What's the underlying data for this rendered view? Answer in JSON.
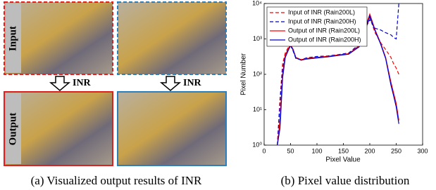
{
  "figure": {
    "row_labels": [
      "Input",
      "Output"
    ],
    "arrow_labels": [
      "INR",
      "INR"
    ],
    "caption": "(a) Visualized output results of INR"
  },
  "chart_data": {
    "type": "line",
    "caption": "(b) Pixel value distribution",
    "xlabel": "Pixel Value",
    "ylabel": "Pixel Number",
    "x": [
      25,
      30,
      35,
      40,
      45,
      50,
      55,
      60,
      70,
      80,
      100,
      120,
      140,
      160,
      180,
      190,
      200,
      210,
      220,
      230,
      240,
      245,
      250,
      255
    ],
    "series": [
      {
        "name": "Input of INR (Rain200L)",
        "color": "#ff0000",
        "linestyle": "dashed",
        "values": [
          1,
          20,
          200,
          400,
          550,
          700,
          500,
          300,
          250,
          280,
          300,
          320,
          350,
          380,
          600,
          1500,
          4000,
          1500,
          800,
          500,
          300,
          200,
          150,
          100
        ]
      },
      {
        "name": "Input of INR (Rain200H)",
        "color": "#0000cc",
        "linestyle": "dashed",
        "values": [
          1,
          15,
          150,
          350,
          500,
          650,
          450,
          280,
          260,
          290,
          320,
          330,
          360,
          400,
          700,
          1800,
          3500,
          2000,
          1800,
          1500,
          1300,
          1100,
          1000,
          10000
        ]
      },
      {
        "name": "Output of INR (Rain200L)",
        "color": "#ff0000",
        "linestyle": "solid",
        "values": [
          1,
          5,
          100,
          350,
          500,
          700,
          500,
          300,
          260,
          280,
          300,
          320,
          350,
          380,
          650,
          1800,
          5000,
          1800,
          800,
          300,
          60,
          30,
          15,
          5
        ]
      },
      {
        "name": "Output of INR (Rain200H)",
        "color": "#0000cc",
        "linestyle": "solid",
        "values": [
          1,
          3,
          80,
          300,
          450,
          650,
          480,
          290,
          250,
          270,
          290,
          310,
          340,
          370,
          600,
          1600,
          4500,
          1700,
          750,
          280,
          50,
          25,
          12,
          4
        ]
      }
    ],
    "xlim": [
      0,
      300
    ],
    "xticks": [
      0,
      50,
      100,
      150,
      200,
      250,
      300
    ],
    "ylim": [
      1,
      10000
    ],
    "log_y": true,
    "yticks": [
      {
        "value": 1,
        "label": "10⁰"
      },
      {
        "value": 10,
        "label": "10¹"
      },
      {
        "value": 100,
        "label": "10²"
      },
      {
        "value": 1000,
        "label": "10³"
      },
      {
        "value": 10000,
        "label": "10⁴"
      }
    ],
    "legend": "upper left"
  }
}
